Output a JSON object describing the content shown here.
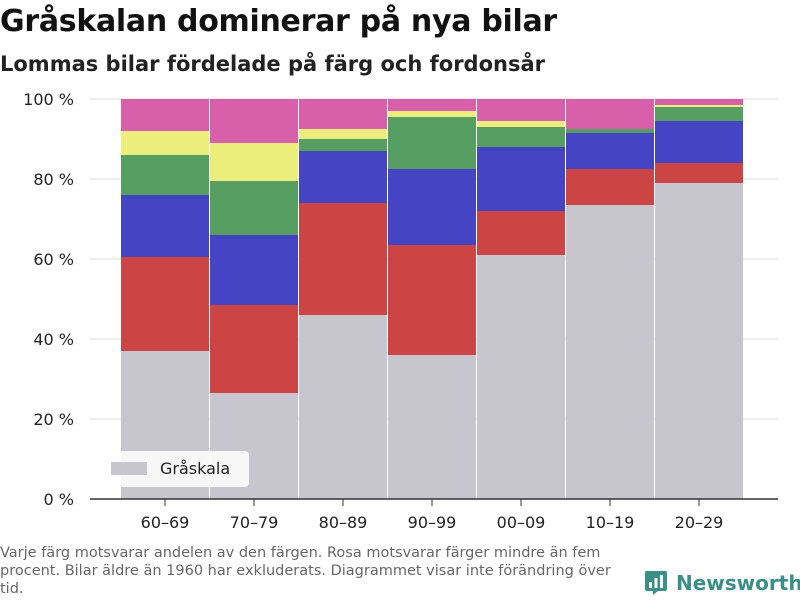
{
  "title": "Gråskalan dominerar på nya bilar",
  "subtitle": "Lommas bilar fördelade på färg och fordonsår",
  "footnote": "Varje färg motsvarar andelen av den färgen. Rosa motsvarar färger mindre än fem procent. Bilar äldre än 1960 har exkluderats. Diagrammet visar inte förändring över tid.",
  "brand": {
    "name": "Newsworthy",
    "icon": "newsworthy-logo-icon"
  },
  "chart_data": {
    "type": "bar",
    "stacked": true,
    "categories": [
      "60–69",
      "70–79",
      "80–89",
      "90–99",
      "00–09",
      "10–19",
      "20–29"
    ],
    "series": [
      {
        "name": "Gråskala",
        "color": "#c7c6cf",
        "values": [
          37,
          26.5,
          46,
          36,
          61,
          73.5,
          79
        ]
      },
      {
        "color": "#cc4444",
        "values": [
          23.5,
          22,
          28,
          27.5,
          11,
          9,
          5
        ]
      },
      {
        "color": "#4444c4",
        "values": [
          15.5,
          17.5,
          13,
          19,
          16,
          9,
          10.5
        ]
      },
      {
        "color": "#579e62",
        "values": [
          10,
          13.5,
          3,
          13,
          5,
          1,
          3.5
        ]
      },
      {
        "color": "#ecee7c",
        "values": [
          6,
          9.5,
          2.5,
          1.5,
          1.5,
          0,
          0.5
        ]
      },
      {
        "color": "#d85faa",
        "values": [
          8,
          11,
          7.5,
          3,
          5.5,
          7.5,
          1.5
        ]
      }
    ],
    "ylim": [
      0,
      100
    ],
    "yticks": [
      0,
      20,
      40,
      60,
      80,
      100
    ],
    "ytick_labels": [
      "0 %",
      "20 %",
      "40 %",
      "60 %",
      "80 %",
      "100 %"
    ],
    "grid": "horizontal",
    "legend": {
      "placement": "bottom-left",
      "entries": [
        "Gråskala"
      ]
    }
  }
}
